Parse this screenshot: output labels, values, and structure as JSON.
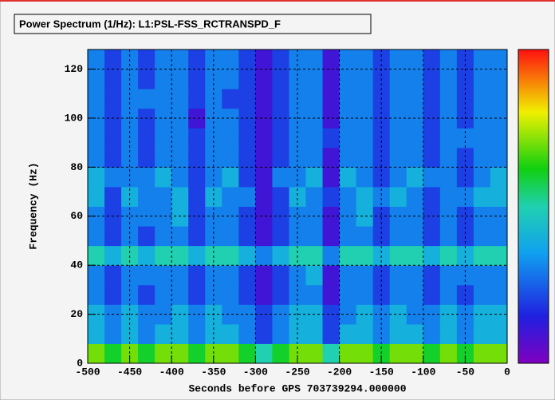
{
  "chart_data": {
    "type": "heatmap",
    "title": "Power Spectrum (1/Hz):  L1:PSL-FSS_RCTRANSPD_F",
    "xlabel": "Seconds before GPS 703739294.000000",
    "ylabel": "Frequency (Hz)",
    "xlim": [
      -500,
      0
    ],
    "ylim": [
      0,
      128
    ],
    "zlim": [
      0,
      10
    ],
    "xticks": [
      -500,
      -450,
      -400,
      -350,
      -300,
      -250,
      -200,
      -150,
      -100,
      -50,
      0
    ],
    "yticks": [
      0,
      20,
      40,
      60,
      80,
      100,
      120
    ],
    "grid": true,
    "z": [
      [
        7,
        6,
        7,
        6,
        7,
        7,
        6,
        7,
        7,
        6,
        5,
        6,
        7,
        7,
        5,
        7,
        7,
        6,
        7,
        7,
        6,
        7,
        6,
        7,
        7
      ],
      [
        4,
        3,
        4,
        3,
        4,
        4,
        3,
        4,
        4,
        3,
        2,
        3,
        4,
        4,
        2,
        4,
        4,
        3,
        4,
        4,
        3,
        4,
        3,
        4,
        4
      ],
      [
        4,
        3,
        4,
        3,
        3,
        4,
        3,
        4,
        3,
        3,
        2,
        3,
        4,
        4,
        2,
        3,
        4,
        3,
        4,
        3,
        3,
        4,
        3,
        4,
        4
      ],
      [
        3,
        2,
        3,
        2,
        3,
        3,
        2,
        3,
        3,
        2,
        1,
        2,
        3,
        3,
        1,
        3,
        3,
        2,
        3,
        3,
        2,
        3,
        2,
        3,
        3
      ],
      [
        3,
        2,
        3,
        3,
        3,
        3,
        2,
        3,
        3,
        2,
        1,
        2,
        3,
        4,
        1,
        3,
        3,
        2,
        3,
        3,
        2,
        3,
        3,
        3,
        3
      ],
      [
        5,
        4,
        5,
        4,
        5,
        5,
        4,
        5,
        5,
        4,
        3,
        4,
        5,
        5,
        3,
        5,
        5,
        4,
        5,
        5,
        4,
        5,
        4,
        5,
        5
      ],
      [
        3,
        2,
        3,
        2,
        3,
        3,
        2,
        3,
        3,
        2,
        1,
        2,
        3,
        3,
        1,
        3,
        3,
        2,
        3,
        3,
        2,
        3,
        2,
        3,
        3
      ],
      [
        3,
        2,
        3,
        3,
        3,
        4,
        2,
        3,
        3,
        2,
        1,
        2,
        3,
        3,
        1,
        3,
        4,
        2,
        3,
        3,
        2,
        3,
        2,
        3,
        3
      ],
      [
        4,
        2,
        4,
        3,
        3,
        4,
        2,
        4,
        3,
        3,
        1,
        2,
        4,
        3,
        2,
        3,
        4,
        3,
        4,
        3,
        2,
        3,
        3,
        4,
        4
      ],
      [
        4,
        3,
        3,
        3,
        4,
        3,
        2,
        3,
        4,
        2,
        1,
        3,
        3,
        4,
        1,
        4,
        3,
        2,
        3,
        4,
        3,
        3,
        2,
        3,
        4
      ],
      [
        3,
        2,
        3,
        2,
        3,
        3,
        2,
        3,
        3,
        2,
        1,
        2,
        3,
        3,
        1,
        3,
        3,
        2,
        3,
        3,
        2,
        3,
        2,
        3,
        3
      ],
      [
        3,
        2,
        3,
        2,
        3,
        3,
        2,
        3,
        3,
        2,
        1,
        2,
        3,
        3,
        2,
        3,
        3,
        2,
        3,
        3,
        2,
        3,
        3,
        3,
        3
      ],
      [
        3,
        2,
        3,
        2,
        3,
        3,
        1,
        3,
        3,
        2,
        1,
        2,
        3,
        3,
        1,
        3,
        3,
        2,
        3,
        3,
        2,
        3,
        2,
        3,
        3
      ],
      [
        3,
        2,
        3,
        3,
        3,
        3,
        2,
        3,
        2,
        2,
        1,
        2,
        3,
        3,
        1,
        3,
        3,
        2,
        3,
        3,
        2,
        3,
        2,
        3,
        3
      ],
      [
        3,
        2,
        3,
        2,
        3,
        3,
        2,
        3,
        3,
        2,
        1,
        2,
        3,
        3,
        1,
        3,
        3,
        2,
        3,
        3,
        2,
        3,
        2,
        3,
        3
      ],
      [
        3,
        2,
        3,
        2,
        3,
        3,
        2,
        3,
        3,
        2,
        1,
        2,
        3,
        3,
        1,
        3,
        3,
        2,
        3,
        3,
        2,
        3,
        2,
        3,
        3
      ]
    ]
  }
}
